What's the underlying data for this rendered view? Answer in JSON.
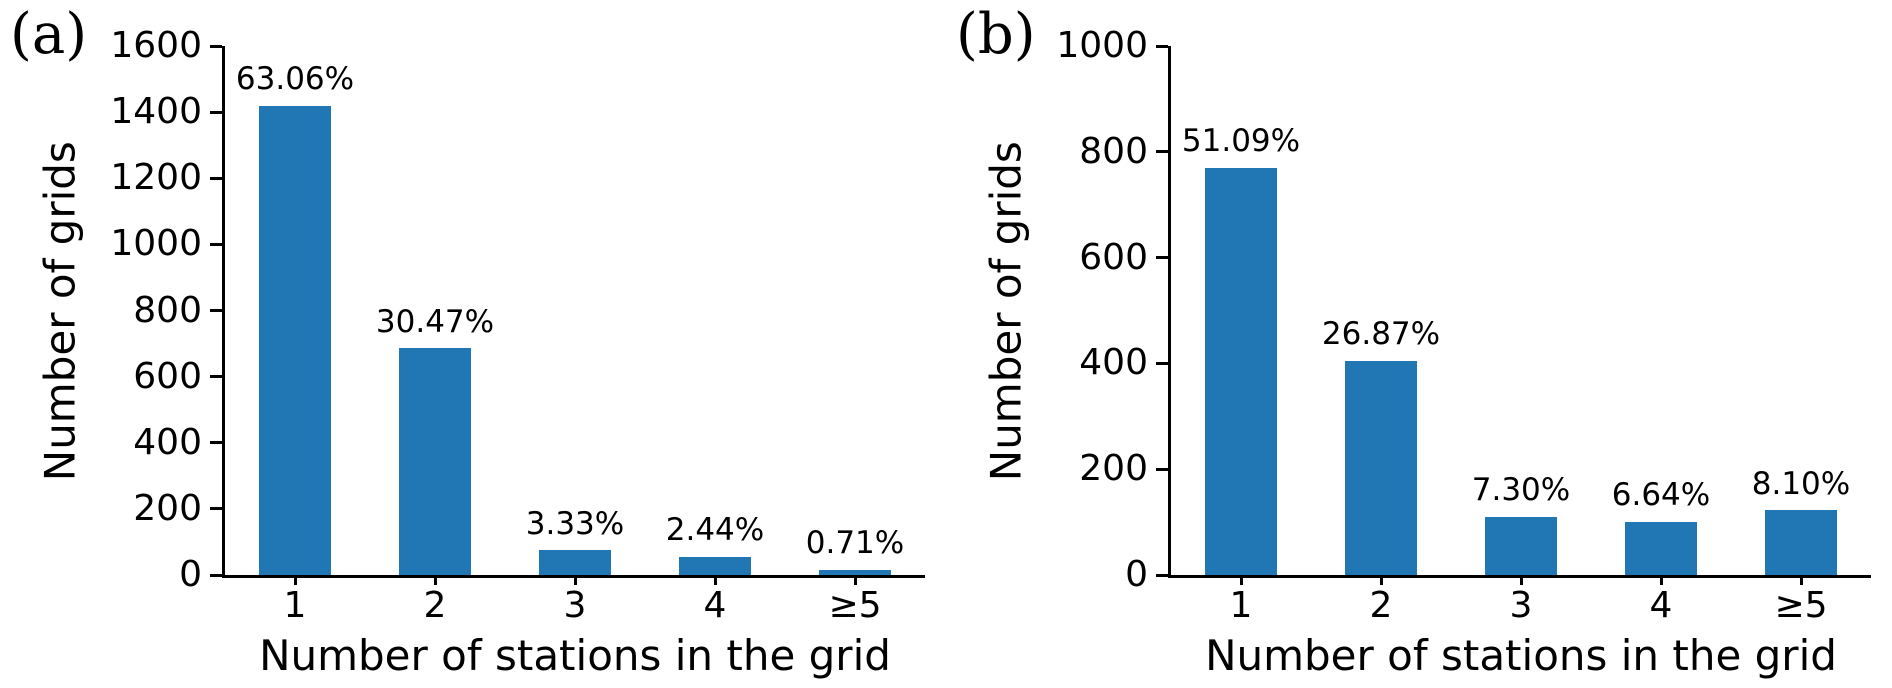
{
  "figure": {
    "background": "#ffffff"
  },
  "chart_data": [
    {
      "type": "bar",
      "panel_label": "(a)",
      "title": "",
      "categories": [
        "1",
        "2",
        "3",
        "4",
        "≥5"
      ],
      "values": [
        1420,
        686,
        75,
        55,
        16
      ],
      "bar_labels": [
        "63.06%",
        "30.47%",
        "3.33%",
        "2.44%",
        "0.71%"
      ],
      "xlabel": "Number of stations in the grid",
      "ylabel": "Number of grids",
      "ylim": [
        0,
        1600
      ],
      "yticks": [
        0,
        200,
        400,
        600,
        800,
        1000,
        1200,
        1400,
        1600
      ],
      "grid": "off",
      "legend": "none",
      "bar_color": "#2077b4"
    },
    {
      "type": "bar",
      "panel_label": "(b)",
      "title": "",
      "categories": [
        "1",
        "2",
        "3",
        "4",
        "≥5"
      ],
      "values": [
        770,
        405,
        110,
        100,
        122
      ],
      "bar_labels": [
        "51.09%",
        "26.87%",
        "7.30%",
        "6.64%",
        "8.10%"
      ],
      "xlabel": "Number of stations in the grid",
      "ylabel": "Number of grids",
      "ylim": [
        0,
        1000
      ],
      "yticks": [
        0,
        200,
        400,
        600,
        800,
        1000
      ],
      "grid": "off",
      "legend": "none",
      "bar_color": "#2077b4"
    }
  ]
}
